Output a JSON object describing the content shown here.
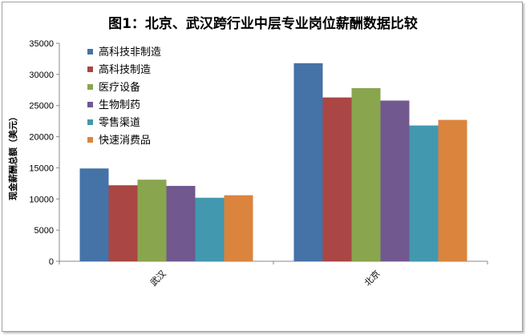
{
  "chart_data": {
    "type": "bar",
    "title": "图1：北京、武汉跨行业中层专业岗位薪酬数据比较",
    "xlabel": "",
    "ylabel": "现金薪酬总额（美元）",
    "categories": [
      "武汉",
      "北京"
    ],
    "ylim": [
      0,
      35000
    ],
    "yticks": [
      0,
      5000,
      10000,
      15000,
      20000,
      25000,
      30000,
      35000
    ],
    "legend_position": "top-left",
    "grid": false,
    "series": [
      {
        "name": "高科技非制造",
        "color": "#4572a7",
        "values": [
          14900,
          31800
        ]
      },
      {
        "name": "高科技制造",
        "color": "#aa4643",
        "values": [
          12200,
          26300
        ]
      },
      {
        "name": "医疗设备",
        "color": "#89a54e",
        "values": [
          13100,
          27800
        ]
      },
      {
        "name": "生物制药",
        "color": "#71588f",
        "values": [
          12100,
          25800
        ]
      },
      {
        "name": "零售渠道",
        "color": "#4198af",
        "values": [
          10200,
          21800
        ]
      },
      {
        "name": "快速消费品",
        "color": "#db843d",
        "values": [
          10600,
          22700
        ]
      }
    ]
  }
}
